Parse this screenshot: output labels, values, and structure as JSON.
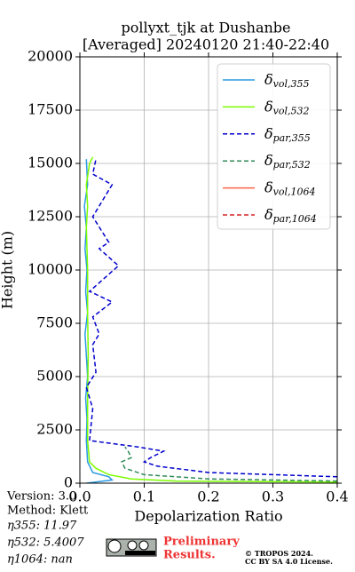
{
  "chart_data": {
    "type": "profile",
    "title": [
      "pollyxt_tjk at Dushanbe",
      "[Averaged] 20240120 21:40-22:40"
    ],
    "xlabel": "Depolarization Ratio",
    "ylabel": "Height (m)",
    "xlim": [
      0,
      0.4
    ],
    "ylim": [
      0,
      20000
    ],
    "xticks": [
      {
        "value": 0,
        "label": "0.0"
      },
      0.1,
      0.2,
      0.3,
      0.4
    ],
    "yticks": [
      0,
      2500,
      5000,
      7500,
      10000,
      12500,
      15000,
      17500,
      20000
    ],
    "grid": true,
    "legend": "upper right",
    "series": [
      {
        "name": "δvol,355",
        "color": "#2b9be3",
        "linestyle": "solid",
        "x": [
          0.01,
          0.05,
          0.045,
          0.02,
          0.012,
          0.01,
          0.011,
          0.009,
          0.012,
          0.01,
          0.008,
          0.012,
          0.009,
          0.011,
          0.008,
          0.01,
          0.007,
          0.012,
          0.01
        ],
        "y": [
          0,
          150,
          300,
          500,
          1000,
          2000,
          3000,
          4000,
          5000,
          6000,
          7000,
          8000,
          9000,
          10000,
          11000,
          12000,
          13000,
          14000,
          15200
        ]
      },
      {
        "name": "δvol,532",
        "color": "#7cfc00",
        "linestyle": "solid",
        "x": [
          0.4,
          0.15,
          0.08,
          0.045,
          0.025,
          0.015,
          0.012,
          0.012,
          0.013,
          0.012,
          0.012,
          0.011,
          0.01,
          0.012,
          0.01,
          0.015,
          0.02
        ],
        "y": [
          50,
          100,
          200,
          400,
          700,
          1000,
          2000,
          4000,
          6000,
          8000,
          10000,
          11000,
          12000,
          13000,
          14000,
          15000,
          15300
        ]
      },
      {
        "name": "δpar,355",
        "color": "#0000cd",
        "linestyle": "dashed",
        "x": [
          0.4,
          0.2,
          0.12,
          0.1,
          0.11,
          0.13,
          0.09,
          0.015,
          0.02,
          0.01,
          0.025,
          0.02,
          0.03,
          0.02,
          0.05,
          0.015,
          0.06,
          0.03,
          0.045,
          0.02,
          0.04,
          0.05,
          0.02,
          0.025
        ],
        "y": [
          300,
          500,
          800,
          1000,
          1200,
          1500,
          1700,
          2000,
          3500,
          4500,
          5200,
          6500,
          7000,
          7800,
          8500,
          9000,
          10200,
          11000,
          11300,
          12500,
          13500,
          14000,
          14500,
          15200
        ]
      },
      {
        "name": "δpar,532",
        "color": "#2e8b57",
        "linestyle": "dashed",
        "x": [
          0.4,
          0.2,
          0.1,
          0.07,
          0.065,
          0.08,
          0.075,
          0.07
        ],
        "y": [
          100,
          200,
          400,
          700,
          1000,
          1200,
          1500,
          1700
        ]
      },
      {
        "name": "δvol,1064",
        "color": "#ff6347",
        "linestyle": "solid",
        "x": [],
        "y": []
      },
      {
        "name": "δpar,1064",
        "color": "#d62728",
        "linestyle": "dashed",
        "x": [],
        "y": []
      }
    ]
  },
  "info": [
    "Version: 3.0",
    "Method: Klett",
    "η355:  11.97",
    "η532: 5.4007",
    "η1064:    nan"
  ],
  "notice": [
    "Preliminary",
    "Results."
  ],
  "copyright": [
    "© TROPOS 2024.",
    "CC BY SA 4.0 License."
  ]
}
